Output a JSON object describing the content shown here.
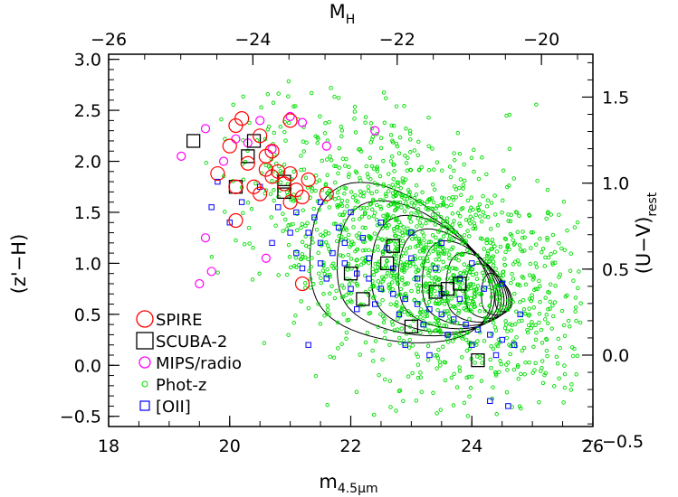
{
  "chart_data": {
    "type": "scatter",
    "xlabel": "m",
    "xlabel_sub": "4.5μm",
    "ylabel": "(z'−H)",
    "x2label": "M",
    "x2label_sub": "H",
    "y2label": "(U−V)",
    "y2label_sub": "rest",
    "xlim": [
      18,
      26
    ],
    "ylim": [
      -0.6,
      3.05
    ],
    "x_ticks": [
      18,
      20,
      22,
      24,
      26
    ],
    "x_tick_labels": [
      "18",
      "20",
      "22",
      "24",
      "26"
    ],
    "y_ticks": [
      -0.5,
      0.0,
      0.5,
      1.0,
      1.5,
      2.0,
      2.5,
      3.0
    ],
    "y_tick_labels": [
      "−0.5",
      "0.0",
      "0.5",
      "1.0",
      "1.5",
      "2.0",
      "2.5",
      "3.0"
    ],
    "x2_ticks": [
      -26,
      -24,
      -22,
      -20
    ],
    "x2_tick_labels": [
      "−26",
      "−24",
      "−22",
      "−20"
    ],
    "x2_mapping": {
      "x_at_minus26": 18.0,
      "x_at_minus20": 25.15
    },
    "y2_ticks": [
      0.0,
      0.5,
      1.0,
      1.5,
      -0.5
    ],
    "y2_tick_labels": [
      "0.0",
      "0.5",
      "1.0",
      "1.5",
      "−0.5"
    ],
    "y2_mapping": {
      "slope": 0.593,
      "intercept": 0.1
    },
    "legend_position": "bottom-left",
    "legend": [
      {
        "label": "SPIRE",
        "marker": "circle-large",
        "color": "#ff0000"
      },
      {
        "label": "SCUBA-2",
        "marker": "square-large",
        "color": "#000000"
      },
      {
        "label": "MIPS/radio",
        "marker": "circle-medium",
        "color": "#ff00ff"
      },
      {
        "label": "Phot-z",
        "marker": "circle-small",
        "color": "#00dd00"
      },
      {
        "label": "[OII]",
        "marker": "square-small",
        "color": "#0000ff"
      }
    ],
    "series": [
      {
        "name": "SPIRE",
        "color": "#ff0000",
        "points": [
          [
            20.1,
            2.35
          ],
          [
            20.2,
            2.42
          ],
          [
            20.0,
            2.15
          ],
          [
            20.3,
            1.98
          ],
          [
            20.4,
            1.75
          ],
          [
            20.5,
            1.68
          ],
          [
            20.6,
            1.92
          ],
          [
            20.7,
            1.85
          ],
          [
            20.8,
            1.9
          ],
          [
            20.9,
            1.78
          ],
          [
            21.0,
            1.88
          ],
          [
            21.1,
            1.72
          ],
          [
            21.0,
            1.6
          ],
          [
            21.2,
            1.65
          ],
          [
            21.3,
            1.82
          ],
          [
            20.5,
            2.25
          ],
          [
            20.6,
            2.05
          ],
          [
            20.7,
            2.1
          ],
          [
            19.8,
            1.88
          ],
          [
            20.1,
            1.42
          ],
          [
            20.1,
            1.75
          ],
          [
            21.6,
            1.68
          ],
          [
            21.2,
            0.8
          ],
          [
            21.0,
            2.4
          ]
        ]
      },
      {
        "name": "SCUBA-2",
        "color": "#000000",
        "points": [
          [
            19.4,
            2.2
          ],
          [
            20.4,
            2.2
          ],
          [
            20.3,
            2.05
          ],
          [
            20.1,
            1.75
          ],
          [
            20.9,
            1.8
          ],
          [
            20.9,
            1.7
          ],
          [
            22.7,
            1.17
          ],
          [
            22.6,
            1.0
          ],
          [
            22.0,
            0.9
          ],
          [
            22.2,
            0.65
          ],
          [
            23.4,
            0.72
          ],
          [
            23.8,
            0.8
          ],
          [
            23.6,
            0.75
          ],
          [
            23.0,
            0.38
          ],
          [
            24.1,
            0.05
          ]
        ]
      },
      {
        "name": "MIPS/radio",
        "color": "#ff00ff",
        "points": [
          [
            19.2,
            2.05
          ],
          [
            19.6,
            2.32
          ],
          [
            19.9,
            2.0
          ],
          [
            20.3,
            2.18
          ],
          [
            20.5,
            2.4
          ],
          [
            20.7,
            2.12
          ],
          [
            21.2,
            2.38
          ],
          [
            21.6,
            2.15
          ],
          [
            22.4,
            2.3
          ],
          [
            19.6,
            1.25
          ],
          [
            19.7,
            0.92
          ],
          [
            19.5,
            0.8
          ],
          [
            20.6,
            1.05
          ],
          [
            21.0,
            2.44
          ],
          [
            20.1,
            2.22
          ]
        ]
      },
      {
        "name": "[OII]",
        "color": "#0000ff",
        "points": [
          [
            20.0,
            1.4
          ],
          [
            20.2,
            1.6
          ],
          [
            20.5,
            1.75
          ],
          [
            20.8,
            1.55
          ],
          [
            21.1,
            1.5
          ],
          [
            21.3,
            1.3
          ],
          [
            21.5,
            1.2
          ],
          [
            21.7,
            1.1
          ],
          [
            21.9,
            1.0
          ],
          [
            22.1,
            0.9
          ],
          [
            22.3,
            0.85
          ],
          [
            22.5,
            0.75
          ],
          [
            22.7,
            0.7
          ],
          [
            22.9,
            0.65
          ],
          [
            23.1,
            0.6
          ],
          [
            23.3,
            0.55
          ],
          [
            23.5,
            0.5
          ],
          [
            23.7,
            0.45
          ],
          [
            23.9,
            0.4
          ],
          [
            24.1,
            0.35
          ],
          [
            24.3,
            0.3
          ],
          [
            24.5,
            0.25
          ],
          [
            24.7,
            0.2
          ],
          [
            21.0,
            1.3
          ],
          [
            21.4,
            1.45
          ],
          [
            21.8,
            1.35
          ],
          [
            22.2,
            1.25
          ],
          [
            22.6,
            1.15
          ],
          [
            23.0,
            1.05
          ],
          [
            23.4,
            0.95
          ],
          [
            23.8,
            0.85
          ],
          [
            24.2,
            0.75
          ],
          [
            21.2,
            0.95
          ],
          [
            21.6,
            0.85
          ],
          [
            22.0,
            0.75
          ],
          [
            22.4,
            0.6
          ],
          [
            22.8,
            0.5
          ],
          [
            23.2,
            0.4
          ],
          [
            23.6,
            0.3
          ],
          [
            24.0,
            0.2
          ],
          [
            24.4,
            0.1
          ],
          [
            21.5,
            1.6
          ],
          [
            22.0,
            1.5
          ],
          [
            22.5,
            1.4
          ],
          [
            23.0,
            1.3
          ],
          [
            23.5,
            1.2
          ],
          [
            24.0,
            1.0
          ],
          [
            24.5,
            0.8
          ],
          [
            20.7,
            1.2
          ],
          [
            21.1,
            1.1
          ],
          [
            22.9,
            0.2
          ],
          [
            23.3,
            0.1
          ],
          [
            19.7,
            1.55
          ],
          [
            19.8,
            1.8
          ],
          [
            24.3,
            -0.35
          ],
          [
            24.6,
            -0.4
          ],
          [
            21.3,
            0.2
          ],
          [
            23.8,
            0.65
          ],
          [
            22.7,
            0.95
          ],
          [
            22.3,
            1.05
          ],
          [
            21.9,
            1.2
          ],
          [
            21.5,
            1.0
          ],
          [
            23.1,
            0.85
          ],
          [
            23.5,
            0.7
          ],
          [
            22.1,
            0.55
          ],
          [
            24.8,
            0.5
          ]
        ]
      }
    ],
    "photz_cloud": {
      "name": "Phot-z",
      "color": "#00dd00",
      "count": 1700,
      "center_x": 23.2,
      "center_y": 0.95,
      "spread_x": 1.4,
      "spread_y": 0.55
    },
    "contours": {
      "color": "#000000",
      "peak_x": 24.7,
      "peak_y": 0.62,
      "levels": [
        {
          "rx": 3.0,
          "ry": 0.75
        },
        {
          "rx": 2.6,
          "ry": 0.63
        },
        {
          "rx": 2.1,
          "ry": 0.55
        },
        {
          "rx": 1.7,
          "ry": 0.47
        },
        {
          "rx": 1.35,
          "ry": 0.4
        },
        {
          "rx": 1.0,
          "ry": 0.33
        },
        {
          "rx": 0.72,
          "ry": 0.26
        },
        {
          "rx": 0.48,
          "ry": 0.2
        },
        {
          "rx": 0.28,
          "ry": 0.14
        }
      ]
    }
  }
}
